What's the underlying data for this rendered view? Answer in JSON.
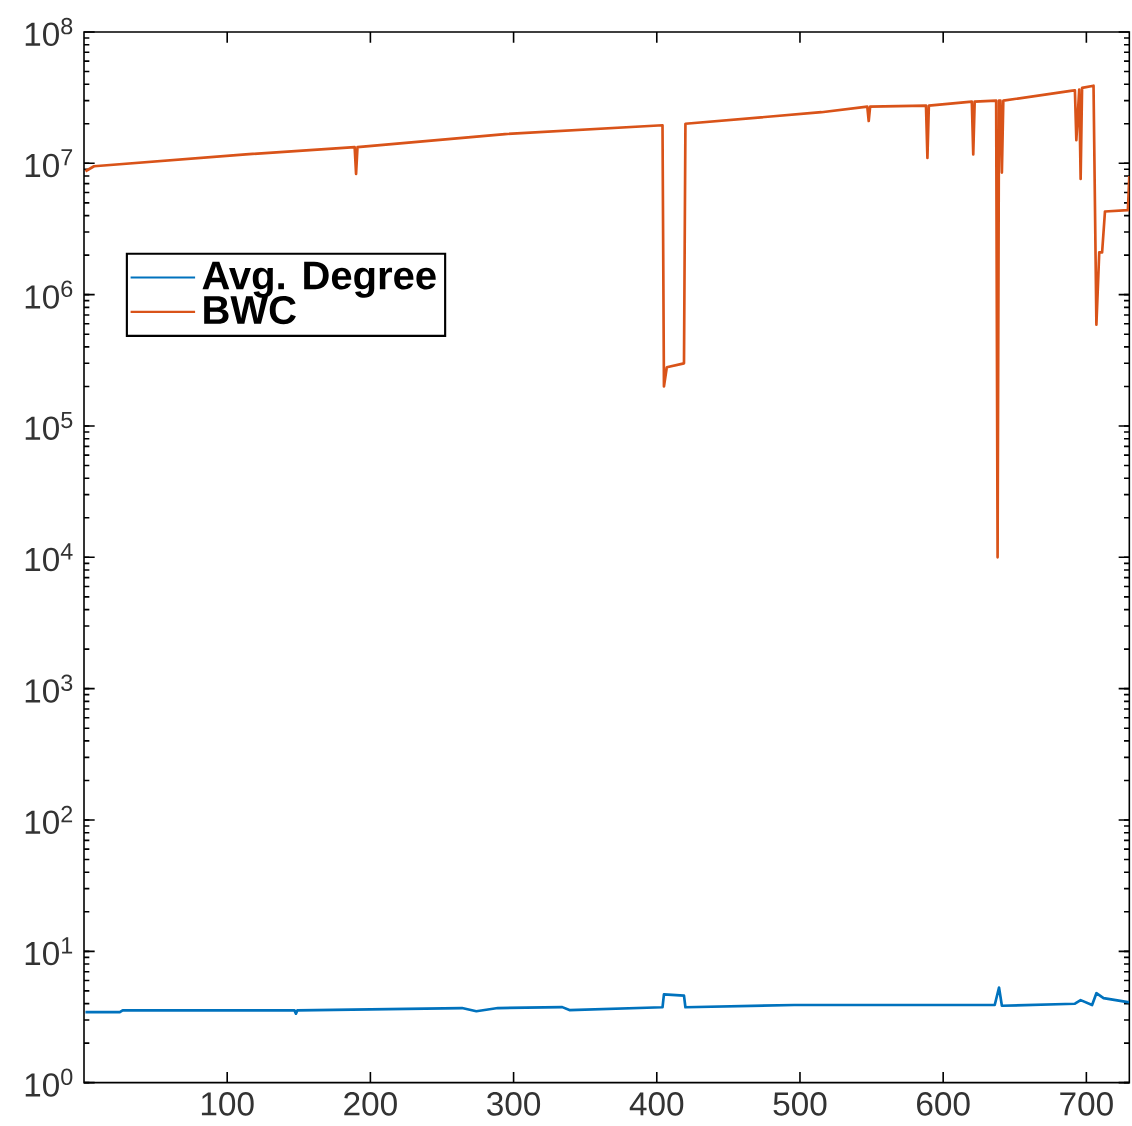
{
  "chart_data": {
    "type": "line",
    "log": "y",
    "xlim": [
      0,
      730
    ],
    "xticks": [
      100,
      200,
      300,
      400,
      500,
      600,
      700
    ],
    "ylim": [
      1,
      100000000
    ],
    "yticks": [
      {
        "value": 1,
        "label": "10$^{0}$"
      },
      {
        "value": 10,
        "label": "10$^{1}$"
      },
      {
        "value": 100,
        "label": "10$^{2}$"
      },
      {
        "value": 1000,
        "label": "10$^{3}$"
      },
      {
        "value": 10000,
        "label": "10$^{4}$"
      },
      {
        "value": 100000,
        "label": "10$^{5}$"
      },
      {
        "value": 1000000,
        "label": "10$^{6}$"
      },
      {
        "value": 10000000,
        "label": "10$^{7}$"
      },
      {
        "value": 100000000,
        "label": "10$^{8}$"
      }
    ],
    "grid": false,
    "legend": "top left",
    "marker": "none",
    "line_style": "solid",
    "series": [
      {
        "name": "Avg. Degree",
        "color": "#0072bd",
        "x": [
          1,
          25,
          27,
          147,
          148,
          149,
          264,
          274,
          289,
          334,
          339,
          404,
          405,
          419,
          420,
          496,
          636,
          639,
          641,
          692,
          696,
          704,
          707,
          712,
          729,
          730
        ],
        "values": [
          3.44,
          3.44,
          3.55,
          3.55,
          3.35,
          3.55,
          3.7,
          3.5,
          3.7,
          3.76,
          3.57,
          3.75,
          4.7,
          4.6,
          3.75,
          3.9,
          3.9,
          5.3,
          3.85,
          3.99,
          4.25,
          3.9,
          4.8,
          4.4,
          4.1,
          4.1
        ]
      },
      {
        "name": "BWC",
        "color": "#d95319",
        "x": [
          1,
          7,
          113,
          189,
          190,
          191,
          294,
          404,
          405,
          407,
          419,
          420,
          515,
          547,
          548,
          549,
          588,
          589,
          590,
          620,
          621,
          622,
          637,
          638,
          639,
          640,
          641,
          642,
          689,
          692,
          693,
          695,
          696,
          697,
          705,
          707,
          709,
          711,
          713,
          729,
          730
        ],
        "values": [
          8700000,
          9500000,
          11700000,
          13300000,
          8300000,
          13300000,
          16700000,
          19500000,
          200000,
          280000,
          300000,
          20000000,
          24500000,
          27000000,
          21000000,
          27000000,
          27500000,
          11000000,
          27500000,
          29500000,
          11700000,
          29500000,
          30000000,
          10000,
          30000000,
          30000000,
          8500000,
          30000000,
          35600000,
          36000000,
          15000000,
          36500000,
          7600000,
          37500000,
          39000000,
          590000,
          2100000,
          2100000,
          4300000,
          4400000,
          8000000
        ]
      }
    ]
  }
}
